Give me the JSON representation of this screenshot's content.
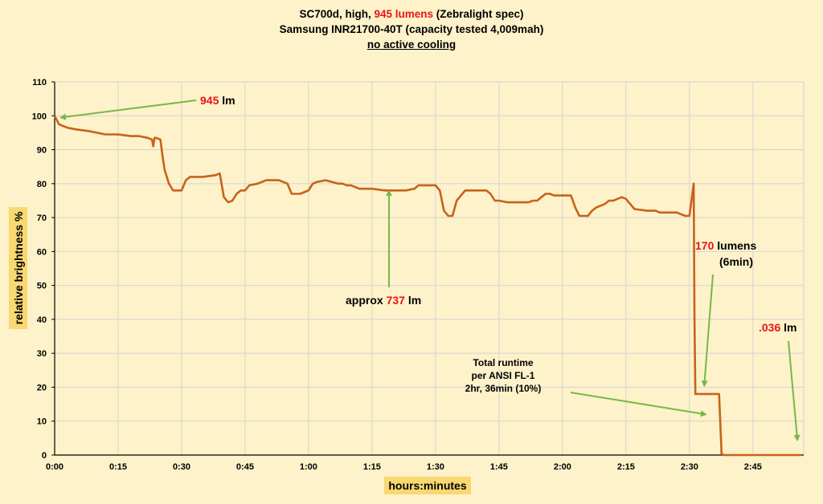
{
  "title": {
    "line1_pre": "SC700d, high, ",
    "line1_highlight": "945 lumens",
    "line1_post": " (Zebralight spec)",
    "line2": "Samsung INR21700-40T (capacity tested 4,009mah)",
    "line3": "no active cooling"
  },
  "colors": {
    "background": "#fdf2c9",
    "series": "#c8621a",
    "grid": "#d4d4d4",
    "arrow": "#77b84a",
    "highlight": "#e8141a",
    "axis_label_bg": "#f9d872"
  },
  "annotations": {
    "start_value": "945",
    "start_unit": " lm",
    "mid_pre": "approx ",
    "mid_value": "737",
    "mid_unit": " lm",
    "low_value": "170",
    "low_unit": " lumens",
    "low_duration": "(6min)",
    "end_value": ".036",
    "end_unit": " lm",
    "runtime_line1": "Total runtime",
    "runtime_line2": "per ANSI FL-1",
    "runtime_line3": "2hr, 36min (10%)"
  },
  "chart_data": {
    "type": "line",
    "xlabel": "hours:minutes",
    "ylabel": "relative brightness  %",
    "xlim": [
      0,
      177
    ],
    "ylim": [
      0,
      110
    ],
    "x_ticks": [
      "0:00",
      "0:15",
      "0:30",
      "0:45",
      "1:00",
      "1:15",
      "1:30",
      "1:45",
      "2:00",
      "2:15",
      "2:30",
      "2:45"
    ],
    "x_tick_minutes": [
      0,
      15,
      30,
      45,
      60,
      75,
      90,
      105,
      120,
      135,
      150,
      165,
      177
    ],
    "y_ticks": [
      0,
      10,
      20,
      30,
      40,
      50,
      60,
      70,
      80,
      90,
      100,
      110
    ],
    "grid": true,
    "legend": "none",
    "series": [
      {
        "x": [
          0,
          1,
          2,
          3,
          5,
          8,
          10,
          12,
          15,
          18,
          20,
          22,
          23,
          23.3,
          23.6,
          24,
          25,
          25.5,
          26,
          27,
          28,
          29,
          30,
          31,
          32,
          33,
          35,
          38,
          39,
          40,
          41,
          42,
          43,
          44,
          45,
          46,
          48,
          50,
          53,
          55,
          56,
          57,
          58,
          60,
          61,
          62,
          64,
          67,
          68,
          69,
          70,
          71,
          72,
          75,
          78,
          80,
          83,
          85,
          86,
          87,
          88,
          89,
          90,
          91,
          92,
          93,
          94,
          95,
          97,
          100,
          101,
          102,
          103,
          104,
          105,
          107,
          110,
          112,
          113,
          114,
          115,
          116,
          117,
          118,
          119,
          120,
          121,
          122,
          123,
          124,
          125,
          126,
          127,
          128,
          129,
          130,
          131,
          132,
          133,
          134,
          135,
          137,
          140,
          142,
          143,
          144,
          145,
          147,
          149,
          150,
          151,
          151.2,
          151.4,
          152,
          153,
          155,
          157,
          157.6,
          158,
          165,
          170,
          176.5
        ],
        "y": [
          100,
          97.5,
          97,
          96.5,
          96,
          95.5,
          95,
          94.5,
          94.5,
          94,
          94,
          93.5,
          93,
          91,
          93.5,
          93.5,
          93,
          88,
          84,
          80,
          78,
          78,
          78,
          81,
          82,
          82,
          82,
          82.5,
          83,
          76,
          74.5,
          75,
          77,
          78,
          78,
          79.5,
          80,
          81,
          81,
          80,
          77,
          77,
          77,
          78,
          80,
          80.5,
          81,
          80,
          80,
          79.5,
          79.5,
          79,
          78.5,
          78.5,
          78,
          78,
          78,
          78.5,
          79.5,
          79.5,
          79.5,
          79.5,
          79.5,
          78,
          72,
          70.5,
          70.5,
          75,
          78,
          78,
          78,
          78,
          77,
          75,
          75,
          74.5,
          74.5,
          74.5,
          75,
          75,
          76,
          77,
          77,
          76.5,
          76.5,
          76.5,
          76.5,
          76.5,
          73,
          70.5,
          70.5,
          70.5,
          72,
          73,
          73.5,
          74,
          75,
          75,
          75.5,
          76,
          75.5,
          72.5,
          72,
          72,
          71.5,
          71.5,
          71.5,
          71.5,
          70.5,
          70.5,
          80,
          40,
          18,
          18,
          18,
          18,
          18,
          0.5,
          0,
          0,
          0,
          0
        ]
      }
    ]
  }
}
